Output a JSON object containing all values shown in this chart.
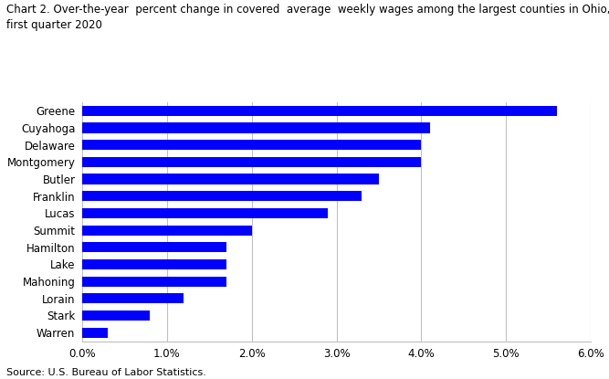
{
  "title_line1": "Chart 2. Over-the-year  percent change in covered  average  weekly wages among the largest counties in Ohio,",
  "title_line2": "first quarter 2020",
  "categories": [
    "Warren",
    "Stark",
    "Lorain",
    "Mahoning",
    "Lake",
    "Hamilton",
    "Summit",
    "Lucas",
    "Franklin",
    "Butler",
    "Montgomery",
    "Delaware",
    "Cuyahoga",
    "Greene"
  ],
  "values": [
    0.003,
    0.008,
    0.012,
    0.017,
    0.017,
    0.017,
    0.02,
    0.029,
    0.033,
    0.035,
    0.04,
    0.04,
    0.041,
    0.056
  ],
  "bar_color": "#0000FF",
  "xlim": [
    0.0,
    0.06
  ],
  "xtick_values": [
    0.0,
    0.01,
    0.02,
    0.03,
    0.04,
    0.05,
    0.06
  ],
  "xtick_labels": [
    "0.0%",
    "1.0%",
    "2.0%",
    "3.0%",
    "4.0%",
    "5.0%",
    "6.0%"
  ],
  "source": "Source: U.S. Bureau of Labor Statistics.",
  "background_color": "#ffffff",
  "grid_color": "#c0c0c0",
  "title_fontsize": 8.5,
  "label_fontsize": 8.5,
  "tick_fontsize": 8.5,
  "source_fontsize": 8.0
}
